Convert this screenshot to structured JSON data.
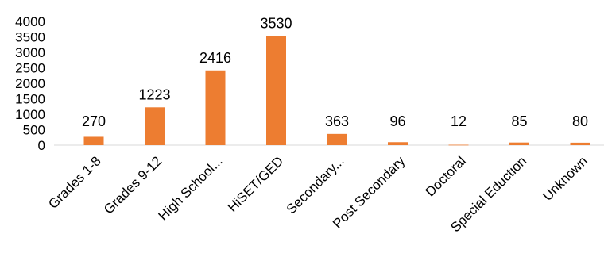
{
  "chart_data": {
    "type": "bar",
    "categories": [
      "Grades 1-8",
      "Grades 9-12",
      "High School...",
      "HiSET/GED",
      "Secondary...",
      "Post Secondary",
      "Doctoral",
      "Special Eduction",
      "Unknown"
    ],
    "values": [
      270,
      1223,
      2416,
      3530,
      363,
      96,
      12,
      85,
      80
    ],
    "data_labels": [
      "270",
      "1223",
      "2416",
      "3530",
      "363",
      "96",
      "12",
      "85",
      "80"
    ],
    "ylim": [
      0,
      4000
    ],
    "yticks": [
      0,
      500,
      1000,
      1500,
      2000,
      2500,
      3000,
      3500,
      4000
    ],
    "ytick_labels": [
      "0",
      "500",
      "1000",
      "1500",
      "2000",
      "2500",
      "3000",
      "3500",
      "4000"
    ],
    "grid": false,
    "legend": "none",
    "bar_color": "#ED7D31"
  }
}
